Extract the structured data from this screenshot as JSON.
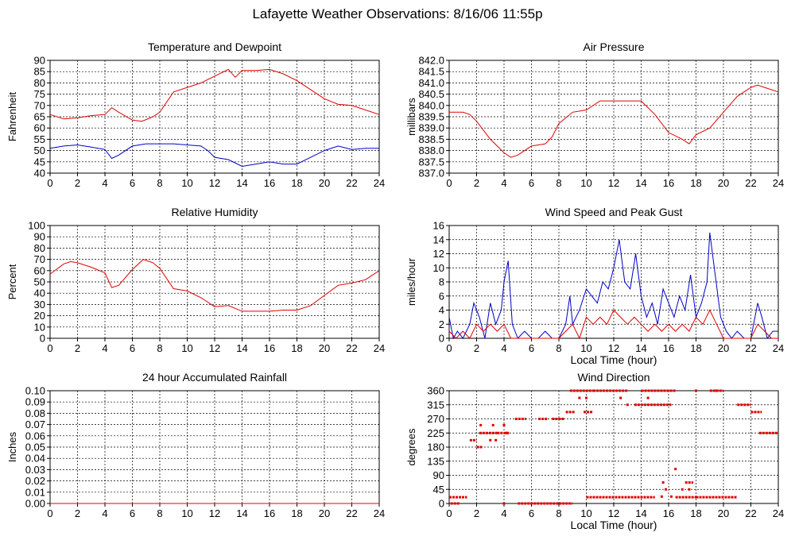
{
  "page_title": "Lafayette Weather Observations: 8/16/06 11:55p",
  "colors": {
    "red": "#e00000",
    "blue": "#0000c8",
    "grid": "#000000"
  },
  "chart_data": [
    {
      "id": "temp",
      "type": "line",
      "title": "Temperature and Dewpoint",
      "xlabel": "",
      "ylabel": "Fahrenheit",
      "xlim": [
        0,
        24
      ],
      "ylim": [
        40,
        90
      ],
      "xticks": [
        0,
        2,
        4,
        6,
        8,
        10,
        12,
        14,
        16,
        18,
        20,
        22,
        24
      ],
      "yticks": [
        "40",
        "45",
        "50",
        "55",
        "60",
        "65",
        "70",
        "75",
        "80",
        "85",
        "90"
      ],
      "grid": true,
      "series": [
        {
          "color": "#e00000",
          "x": [
            0,
            1,
            2,
            3,
            4,
            4.5,
            5,
            6,
            6.7,
            7.5,
            8,
            9,
            10,
            11,
            12,
            13,
            13.5,
            14,
            15,
            16,
            17,
            18,
            19,
            20,
            21,
            22,
            23,
            24
          ],
          "y": [
            66,
            64,
            64.5,
            65.5,
            66,
            69,
            67,
            63.5,
            63,
            65,
            67,
            76,
            78,
            80,
            83,
            86,
            82.5,
            85.5,
            85.5,
            86,
            84,
            81,
            77,
            73,
            70.5,
            70,
            68,
            66
          ]
        },
        {
          "color": "#0000c8",
          "x": [
            0,
            1,
            2,
            3,
            4,
            4.5,
            5,
            6,
            7,
            8,
            9,
            10,
            11,
            11.5,
            12,
            13,
            14,
            15,
            16,
            17,
            18,
            19,
            20,
            21,
            22,
            23,
            24
          ],
          "y": [
            51,
            52,
            52.5,
            51.5,
            50.5,
            46.5,
            48,
            52,
            53,
            53,
            53,
            52.5,
            52,
            50,
            47,
            46,
            43,
            44,
            45,
            44,
            44,
            47,
            50,
            52,
            50.5,
            51,
            51
          ]
        }
      ]
    },
    {
      "id": "press",
      "type": "line",
      "title": "Air Pressure",
      "xlabel": "",
      "ylabel": "millibars",
      "xlim": [
        0,
        24
      ],
      "ylim": [
        837,
        842
      ],
      "xticks": [
        0,
        2,
        4,
        6,
        8,
        10,
        12,
        14,
        16,
        18,
        20,
        22,
        24
      ],
      "yticks": [
        "837.0",
        "837.5",
        "838.0",
        "838.5",
        "839.0",
        "839.5",
        "840.0",
        "840.5",
        "841.0",
        "841.5",
        "842.0"
      ],
      "grid": true,
      "series": [
        {
          "color": "#e00000",
          "x": [
            0,
            1,
            1.5,
            2,
            3,
            4,
            4.5,
            5,
            5.5,
            6,
            7,
            7.5,
            8,
            9,
            10,
            11,
            12,
            13,
            14,
            15,
            16,
            17,
            17.5,
            18,
            19,
            20,
            21,
            22,
            22.5,
            23,
            24
          ],
          "y": [
            839.7,
            839.7,
            839.6,
            839.3,
            838.5,
            837.9,
            837.7,
            837.8,
            838.0,
            838.2,
            838.3,
            838.6,
            839.2,
            839.7,
            839.8,
            840.2,
            840.2,
            840.2,
            840.2,
            839.6,
            838.8,
            838.5,
            838.3,
            838.7,
            839.0,
            839.7,
            840.4,
            840.8,
            840.9,
            840.8,
            840.6
          ]
        }
      ]
    },
    {
      "id": "rh",
      "type": "line",
      "title": "Relative Humidity",
      "xlabel": "",
      "ylabel": "Percent",
      "xlim": [
        0,
        24
      ],
      "ylim": [
        0,
        100
      ],
      "xticks": [
        0,
        2,
        4,
        6,
        8,
        10,
        12,
        14,
        16,
        18,
        20,
        22,
        24
      ],
      "yticks": [
        "0",
        "10",
        "20",
        "30",
        "40",
        "50",
        "60",
        "70",
        "80",
        "90",
        "100"
      ],
      "grid": true,
      "series": [
        {
          "color": "#e00000",
          "x": [
            0,
            1,
            1.5,
            2,
            3,
            4,
            4.5,
            5,
            6,
            6.8,
            7.5,
            8,
            9,
            10,
            11,
            12,
            13,
            14,
            15,
            16,
            17,
            18,
            19,
            20,
            21,
            22,
            23,
            24
          ],
          "y": [
            57,
            66,
            68,
            67,
            63,
            58,
            45,
            47,
            61,
            70,
            67,
            62,
            44,
            42,
            36,
            28,
            29,
            24,
            24,
            24,
            25,
            25,
            29,
            38,
            47,
            49,
            52,
            60
          ]
        }
      ]
    },
    {
      "id": "wind",
      "type": "line",
      "title": "Wind Speed and Peak Gust",
      "xlabel": "Local Time (hour)",
      "ylabel": "miles/hour",
      "xlim": [
        0,
        24
      ],
      "ylim": [
        0,
        16
      ],
      "xticks": [
        0,
        2,
        4,
        6,
        8,
        10,
        12,
        14,
        16,
        18,
        20,
        22,
        24
      ],
      "yticks": [
        "0",
        "2",
        "4",
        "6",
        "8",
        "10",
        "12",
        "14",
        "16"
      ],
      "grid": true,
      "series": [
        {
          "color": "#0000c8",
          "x": [
            0,
            0.3,
            0.6,
            1,
            1.5,
            1.8,
            2.2,
            2.6,
            3,
            3.4,
            3.8,
            4,
            4.3,
            4.6,
            5,
            5.5,
            6,
            6.5,
            7,
            7.5,
            8,
            8.5,
            8.8,
            9,
            9.5,
            10,
            10.4,
            10.8,
            11.2,
            11.6,
            12,
            12.4,
            12.8,
            13.2,
            13.6,
            14,
            14.4,
            14.8,
            15.2,
            15.6,
            16,
            16.4,
            16.8,
            17.2,
            17.6,
            18,
            18.4,
            18.8,
            19,
            19.4,
            19.8,
            20.2,
            20.6,
            21,
            21.5,
            22,
            22.5,
            22.8,
            23.2,
            23.6,
            24
          ],
          "y": [
            3,
            0,
            1,
            0,
            2,
            5,
            3,
            0,
            5,
            2,
            4,
            8,
            11,
            2,
            0,
            1,
            0,
            0,
            1,
            0,
            0,
            2,
            6,
            2,
            4,
            7,
            6,
            5,
            8,
            7,
            10,
            14,
            8,
            7,
            12,
            6,
            3,
            5,
            2,
            7,
            5,
            3,
            6,
            4,
            9,
            3,
            5,
            8,
            15,
            9,
            3,
            1,
            0,
            1,
            0,
            0,
            5,
            3,
            0,
            1,
            1
          ]
        },
        {
          "color": "#e00000",
          "x": [
            0,
            0.5,
            1,
            1.5,
            2,
            2.5,
            3,
            3.5,
            4,
            4.5,
            5,
            5.5,
            6,
            6.5,
            7,
            7.5,
            8,
            8.5,
            9,
            9.5,
            10,
            10.5,
            11,
            11.5,
            12,
            12.5,
            13,
            13.5,
            14,
            14.5,
            15,
            15.5,
            16,
            16.5,
            17,
            17.5,
            18,
            18.5,
            19,
            19.5,
            20,
            20.5,
            21,
            21.5,
            22,
            22.5,
            23,
            23.5,
            24
          ],
          "y": [
            1,
            0,
            1,
            0,
            2,
            1,
            2,
            1,
            2,
            0,
            0,
            0,
            0,
            0,
            0,
            0,
            0,
            1,
            2,
            0,
            3,
            2,
            3,
            2,
            4,
            3,
            2,
            3,
            2,
            1,
            2,
            1,
            2,
            1,
            2,
            1,
            3,
            2,
            4,
            2,
            0,
            0,
            0,
            0,
            0,
            2,
            1,
            0,
            0
          ]
        }
      ]
    },
    {
      "id": "rain",
      "type": "line",
      "title": "24 hour Accumulated Rainfall",
      "xlabel": "",
      "ylabel": "Inches",
      "xlim": [
        0,
        24
      ],
      "ylim": [
        0,
        0.1
      ],
      "xticks": [
        0,
        2,
        4,
        6,
        8,
        10,
        12,
        14,
        16,
        18,
        20,
        22,
        24
      ],
      "yticks": [
        "0.00",
        "0.01",
        "0.02",
        "0.03",
        "0.04",
        "0.05",
        "0.06",
        "0.07",
        "0.08",
        "0.09",
        "0.10"
      ],
      "grid": true,
      "series": [
        {
          "color": "#e00000",
          "x": [
            0,
            24
          ],
          "y": [
            0,
            0
          ]
        }
      ]
    },
    {
      "id": "dir",
      "type": "scatter",
      "title": "Wind Direction",
      "xlabel": "Local Time (hour)",
      "ylabel": "degrees",
      "xlim": [
        0,
        24
      ],
      "ylim": [
        0,
        360
      ],
      "xticks": [
        0,
        2,
        4,
        6,
        8,
        10,
        12,
        14,
        16,
        18,
        20,
        22,
        24
      ],
      "yticks": [
        "0",
        "45",
        "90",
        "135",
        "180",
        "225",
        "270",
        "315",
        "360"
      ],
      "grid": true,
      "series": [
        {
          "color": "#e00000",
          "segments": [
            [
              0,
              1.3,
              20
            ],
            [
              0.1,
              0.8,
              0
            ],
            [
              1.5,
              2,
              202
            ],
            [
              2,
              2.4,
              180
            ],
            [
              2.2,
              3.5,
              225
            ],
            [
              3.5,
              4.4,
              225
            ],
            [
              4.8,
              5.6,
              270
            ],
            [
              5,
              9,
              0
            ],
            [
              6.5,
              7.2,
              270
            ],
            [
              7.5,
              8.4,
              270
            ],
            [
              8.5,
              9.2,
              292
            ],
            [
              8.8,
              10.5,
              360
            ],
            [
              9.8,
              10.5,
              292
            ],
            [
              10,
              15,
              20
            ],
            [
              10.5,
              13,
              360
            ],
            [
              13.5,
              16.2,
              315
            ],
            [
              14,
              16.5,
              360
            ],
            [
              16.5,
              18,
              20
            ],
            [
              17.2,
              17.8,
              67
            ],
            [
              18,
              21,
              20
            ],
            [
              19,
              20,
              360
            ],
            [
              21,
              22,
              315
            ],
            [
              22,
              22.8,
              292
            ],
            [
              22.6,
              24,
              225
            ]
          ],
          "points": [
            [
              2.3,
              250
            ],
            [
              3,
              202
            ],
            [
              3.2,
              250
            ],
            [
              3.4,
              202
            ],
            [
              4,
              250
            ],
            [
              4,
              0
            ],
            [
              4.2,
              225
            ],
            [
              9.5,
              337
            ],
            [
              10,
              337
            ],
            [
              12.5,
              337
            ],
            [
              13,
              315
            ],
            [
              14.5,
              337
            ],
            [
              15.5,
              22
            ],
            [
              15.6,
              67
            ],
            [
              15.8,
              45
            ],
            [
              16.2,
              22
            ],
            [
              16.5,
              110
            ],
            [
              17,
              45
            ],
            [
              17.5,
              45
            ],
            [
              18,
              360
            ],
            [
              19.5,
              360
            ]
          ]
        }
      ]
    }
  ]
}
